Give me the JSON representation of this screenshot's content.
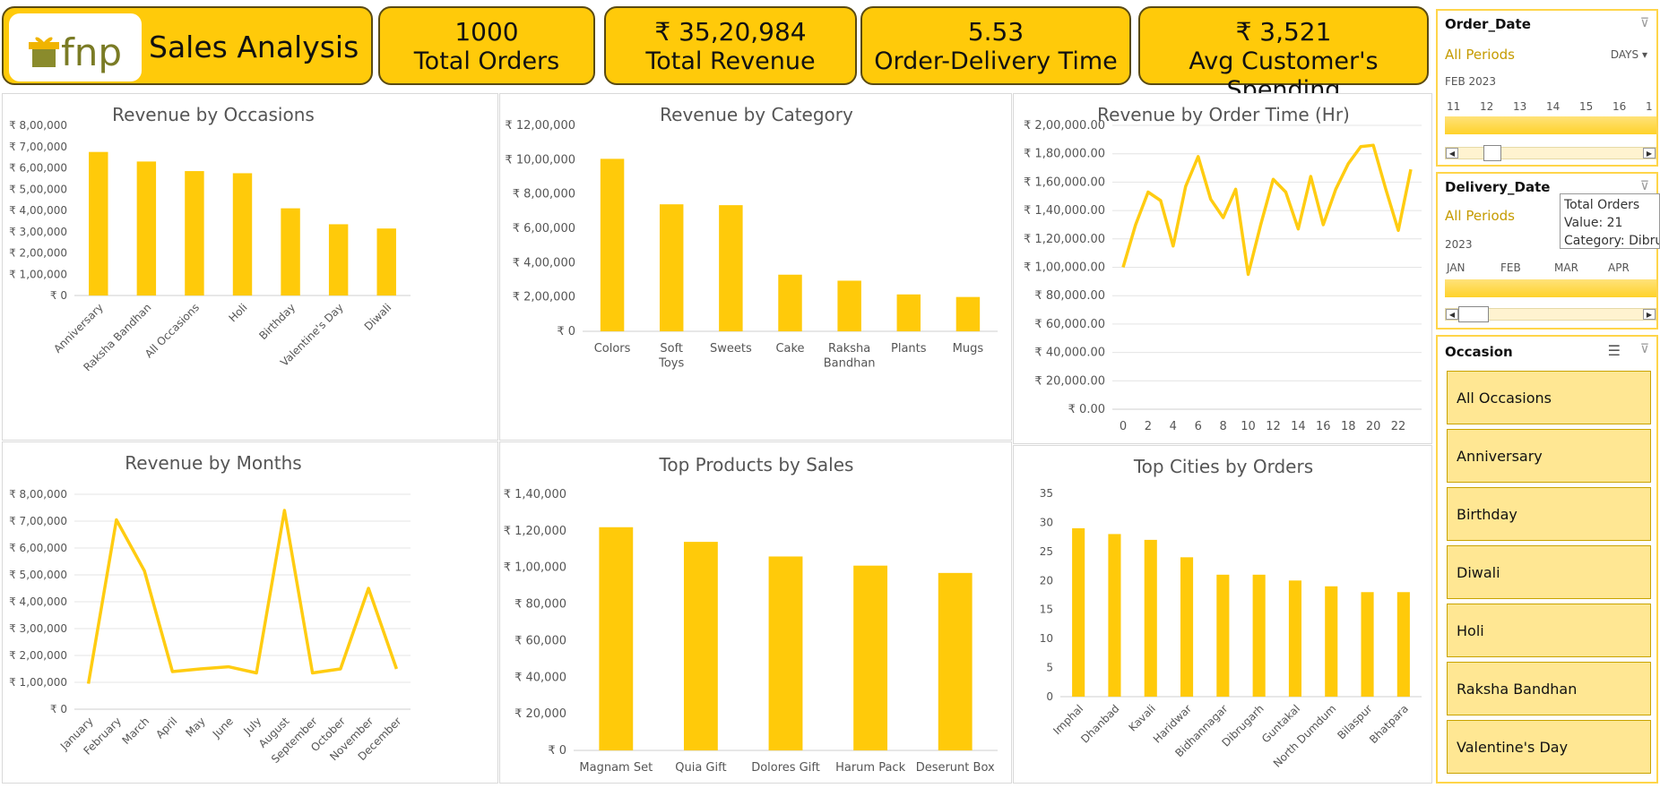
{
  "header": {
    "brand": "fnp",
    "title": "Sales Analysis",
    "kpis": [
      {
        "value": "1000",
        "label": "Total Orders"
      },
      {
        "value": "₹ 35,20,984",
        "label": "Total Revenue"
      },
      {
        "value": "5.53",
        "label": "Order-Delivery Time"
      },
      {
        "value": "₹ 3,521",
        "label": "Avg Customer's Spending"
      }
    ]
  },
  "colors": {
    "accent": "#FFCA0A",
    "bar": "#FFCA0A",
    "line": "#FFCC11"
  },
  "chart_data": [
    {
      "type": "bar",
      "title": "Revenue by Occasions",
      "categories": [
        "Anniversary",
        "Raksha Bandhan",
        "All Occasions",
        "Holi",
        "Birthday",
        "Valentine's Day",
        "Diwali"
      ],
      "values": [
        675000,
        630000,
        585000,
        575000,
        410000,
        335000,
        315000
      ],
      "ylim": [
        0,
        800000
      ],
      "yticks": [
        "₹ 0",
        "₹ 1,00,000",
        "₹ 2,00,000",
        "₹ 3,00,000",
        "₹ 4,00,000",
        "₹ 5,00,000",
        "₹ 6,00,000",
        "₹ 7,00,000",
        "₹ 8,00,000"
      ]
    },
    {
      "type": "bar",
      "title": "Revenue by Category",
      "categories": [
        "Colors",
        "Soft Toys",
        "Sweets",
        "Cake",
        "Raksha Bandhan",
        "Plants",
        "Mugs"
      ],
      "values": [
        1005000,
        740000,
        735000,
        330000,
        295000,
        215000,
        200000
      ],
      "ylim": [
        0,
        1200000
      ],
      "yticks": [
        "₹ 0",
        "₹ 2,00,000",
        "₹ 4,00,000",
        "₹ 6,00,000",
        "₹ 8,00,000",
        "₹ 10,00,000",
        "₹ 12,00,000"
      ]
    },
    {
      "type": "line",
      "title": "Revenue by Order Time (Hr)",
      "x": [
        0,
        1,
        2,
        3,
        4,
        5,
        6,
        7,
        8,
        9,
        10,
        11,
        12,
        13,
        14,
        15,
        16,
        17,
        18,
        19,
        20,
        21,
        22,
        23
      ],
      "values": [
        100000,
        130000,
        153000,
        147000,
        115000,
        157000,
        178000,
        148000,
        135000,
        155000,
        95000,
        130000,
        162000,
        153000,
        127000,
        164000,
        130000,
        155000,
        173000,
        185000,
        186000,
        155000,
        126000,
        169000
      ],
      "xticks": [
        "0",
        "2",
        "4",
        "6",
        "8",
        "10",
        "12",
        "14",
        "16",
        "18",
        "20",
        "22"
      ],
      "ylim": [
        0,
        200000
      ],
      "yticks": [
        "₹ 0.00",
        "₹ 20,000.00",
        "₹ 40,000.00",
        "₹ 60,000.00",
        "₹ 80,000.00",
        "₹ 1,00,000.00",
        "₹ 1,20,000.00",
        "₹ 1,40,000.00",
        "₹ 1,60,000.00",
        "₹ 1,80,000.00",
        "₹ 2,00,000.00"
      ]
    },
    {
      "type": "line",
      "title": "Revenue by Months",
      "categories": [
        "January",
        "February",
        "March",
        "April",
        "May",
        "June",
        "July",
        "August",
        "September",
        "October",
        "November",
        "December"
      ],
      "values": [
        95000,
        705000,
        515000,
        140000,
        150000,
        158000,
        135000,
        740000,
        135000,
        150000,
        450000,
        150000
      ],
      "ylim": [
        0,
        800000
      ],
      "yticks": [
        "₹ 0",
        "₹ 1,00,000",
        "₹ 2,00,000",
        "₹ 3,00,000",
        "₹ 4,00,000",
        "₹ 5,00,000",
        "₹ 6,00,000",
        "₹ 7,00,000",
        "₹ 8,00,000"
      ]
    },
    {
      "type": "bar",
      "title": "Top Products by Sales",
      "categories": [
        "Magnam Set",
        "Quia Gift",
        "Dolores Gift",
        "Harum Pack",
        "Deserunt Box"
      ],
      "values": [
        122000,
        114000,
        106000,
        101000,
        97000
      ],
      "ylim": [
        0,
        140000
      ],
      "yticks": [
        "₹ 0",
        "₹ 20,000",
        "₹ 40,000",
        "₹ 60,000",
        "₹ 80,000",
        "₹ 1,00,000",
        "₹ 1,20,000",
        "₹ 1,40,000"
      ]
    },
    {
      "type": "bar",
      "title": "Top Cities by Orders",
      "categories": [
        "Imphal",
        "Dhanbad",
        "Kavali",
        "Haridwar",
        "Bidhannagar",
        "Dibrugarh",
        "Guntakal",
        "North Dumdum",
        "Bilaspur",
        "Bhatpara"
      ],
      "values": [
        29,
        28,
        27,
        24,
        21,
        21,
        20,
        19,
        18,
        18
      ],
      "ylim": [
        0,
        35
      ],
      "yticks": [
        "0",
        "5",
        "10",
        "15",
        "20",
        "25",
        "30",
        "35"
      ]
    }
  ],
  "slicers": {
    "order_date": {
      "title": "Order_Date",
      "all": "All Periods",
      "unit": "DAYS",
      "period": "FEB 2023",
      "ticks": [
        "11",
        "12",
        "13",
        "14",
        "15",
        "16",
        "1"
      ]
    },
    "delivery_date": {
      "title": "Delivery_Date",
      "all": "All Periods",
      "period": "2023",
      "ticks": [
        "JAN",
        "FEB",
        "MAR",
        "APR"
      ]
    },
    "occasion": {
      "title": "Occasion",
      "items": [
        "All Occasions",
        "Anniversary",
        "Birthday",
        "Diwali",
        "Holi",
        "Raksha Bandhan",
        "Valentine's Day"
      ]
    }
  },
  "tooltip": {
    "line1": "Total Orders",
    "line2": "Value: 21",
    "line3": "Category: Dibrug"
  }
}
